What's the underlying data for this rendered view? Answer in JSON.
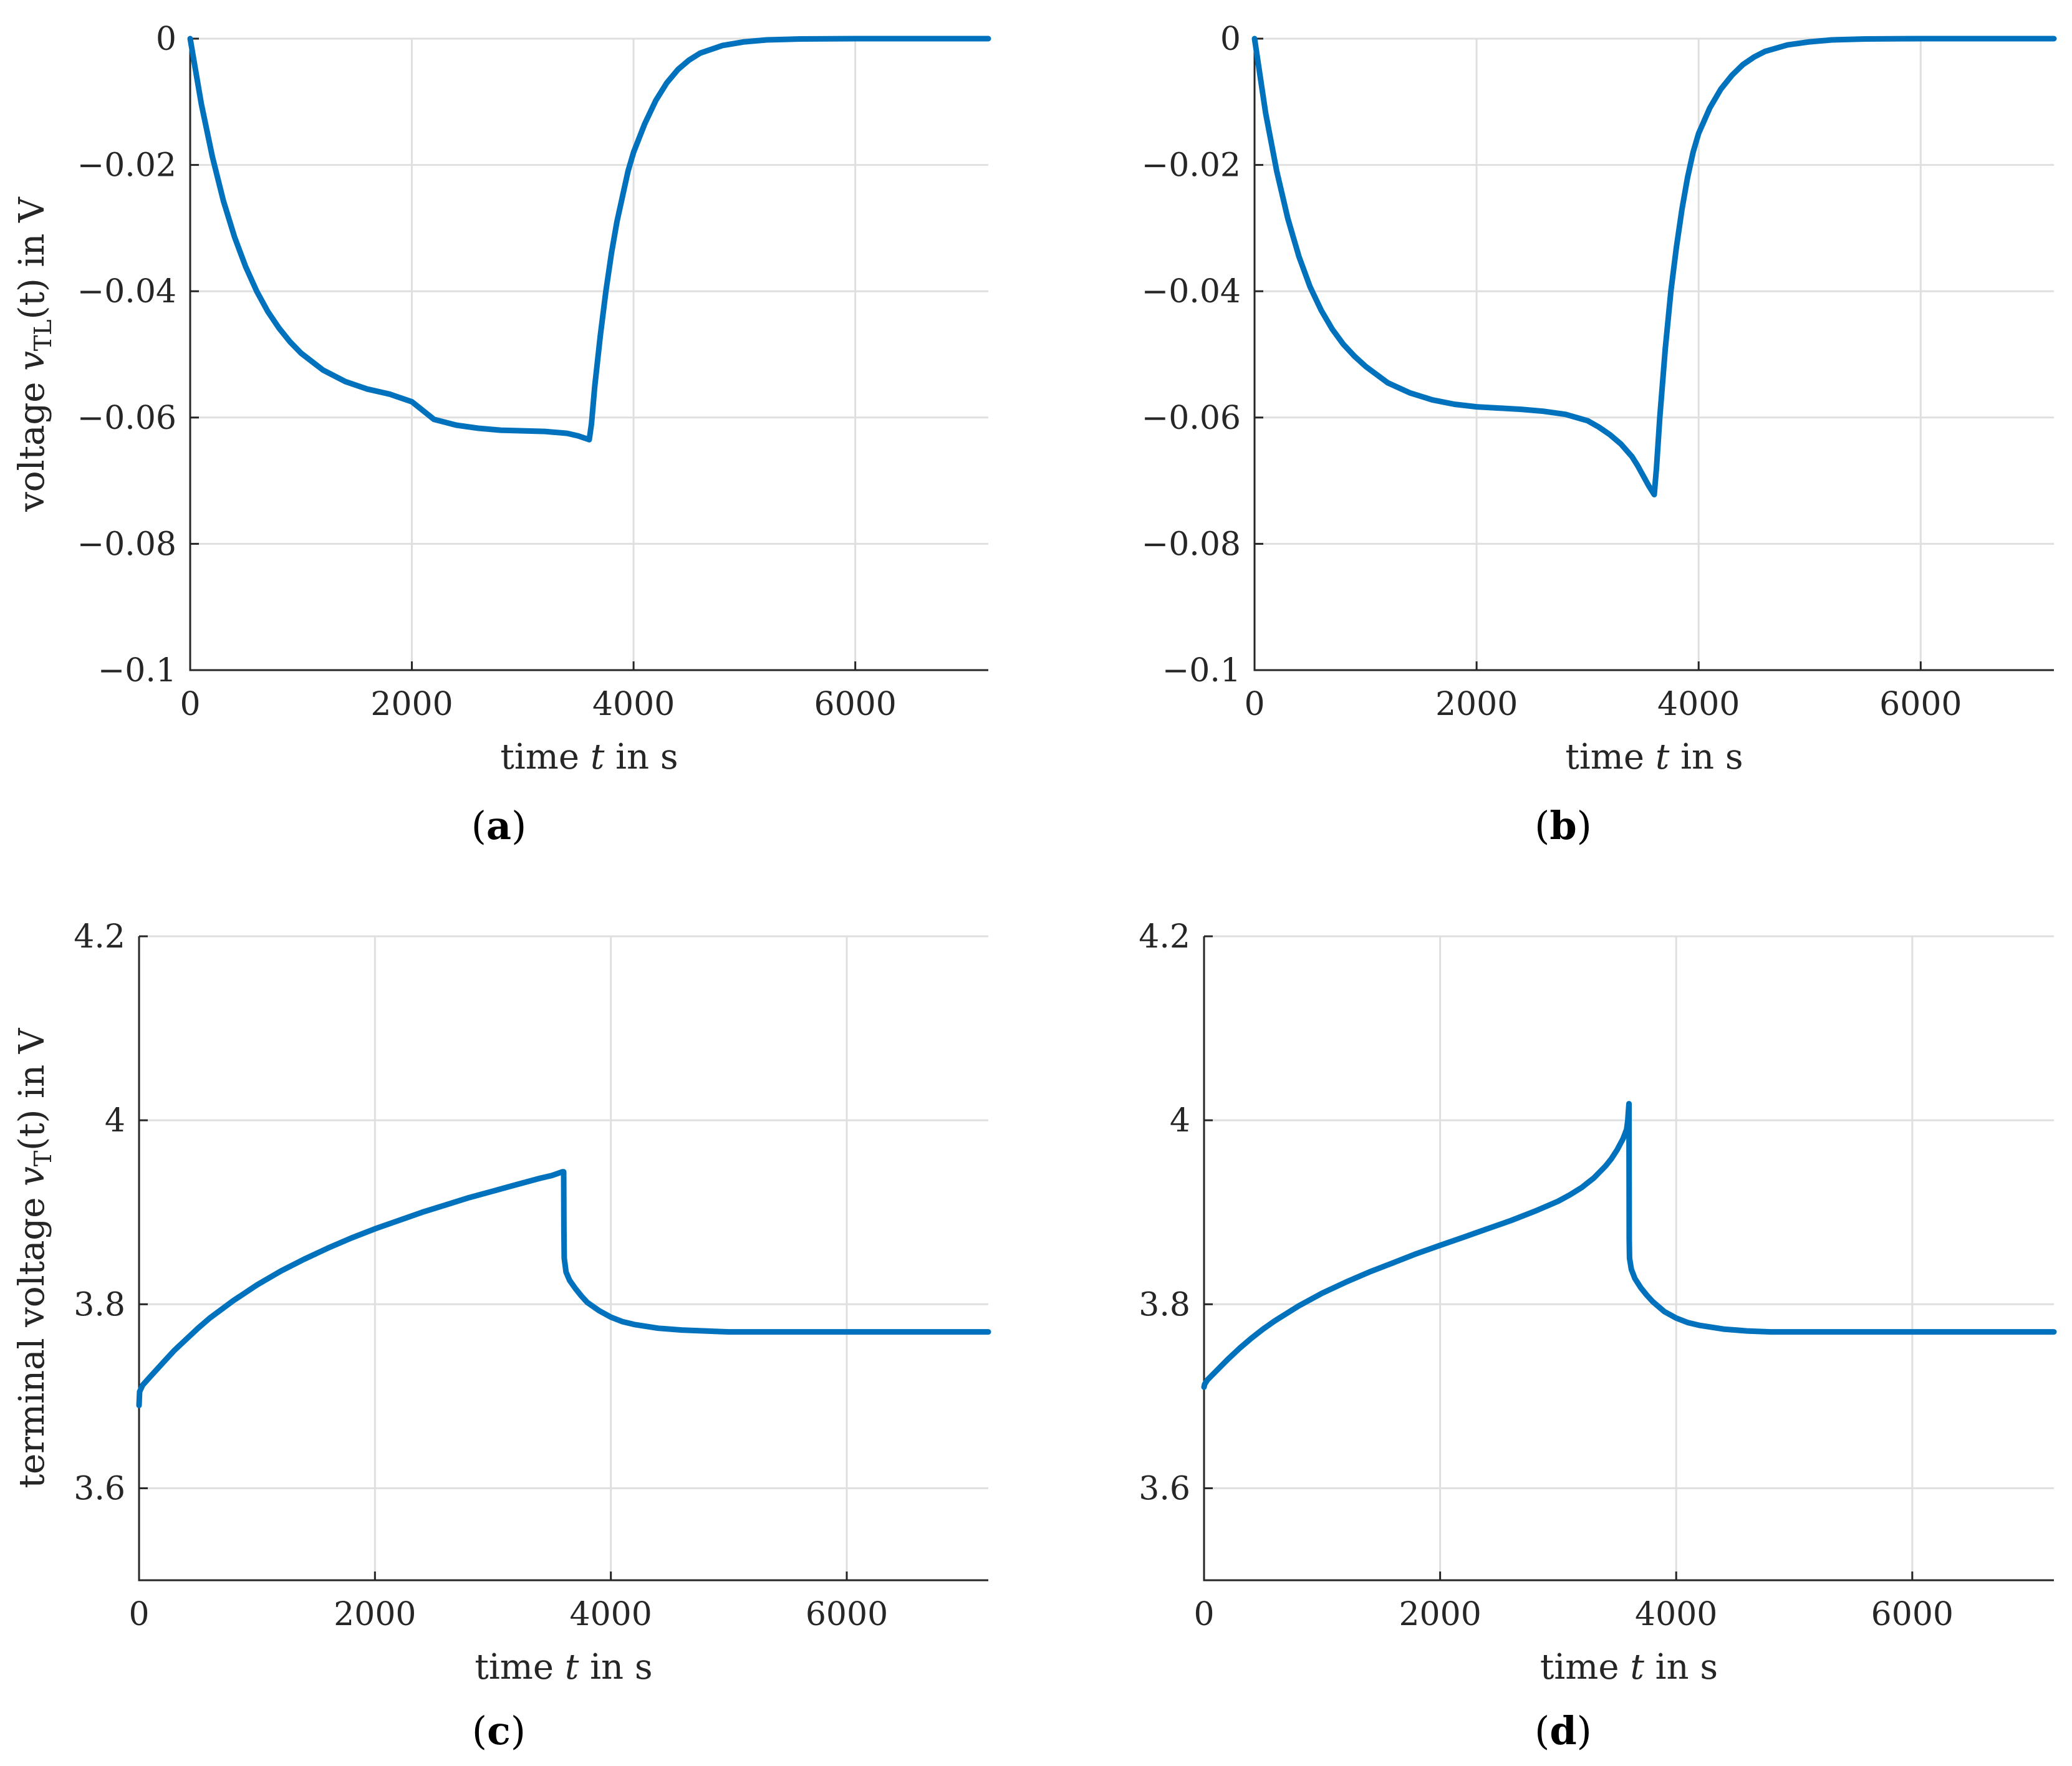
{
  "figure": {
    "line_color": "#0072bd",
    "grid_color": "#dfdfdf",
    "axis_color": "#262626"
  },
  "chart_data": [
    {
      "id": "a",
      "type": "line",
      "subcaption_open": "(",
      "subcaption_letter": "a",
      "subcaption_close": ")",
      "xlabel_pre": "time ",
      "xlabel_var": "t",
      "xlabel_post": " in s",
      "ylabel_pre": "voltage ",
      "ylabel_var": "v",
      "ylabel_sub": "TL",
      "ylabel_post": "(t) in V",
      "xlim": [
        0,
        7200
      ],
      "ylim": [
        -0.1,
        0
      ],
      "xticks": [
        0,
        2000,
        4000,
        6000
      ],
      "xtick_labels": [
        "0",
        "2000",
        "4000",
        "6000"
      ],
      "yticks": [
        -0.1,
        -0.08,
        -0.06,
        -0.04,
        -0.02,
        0
      ],
      "ytick_labels": [
        "−0.1",
        "−0.08",
        "−0.06",
        "−0.04",
        "−0.02",
        "0"
      ],
      "grid": true,
      "series": [
        {
          "name": "v_TL",
          "x": [
            0,
            100,
            200,
            300,
            400,
            500,
            600,
            700,
            800,
            900,
            1000,
            1200,
            1400,
            1600,
            1800,
            2000,
            2200,
            2400,
            2600,
            2800,
            3000,
            3200,
            3400,
            3500,
            3600,
            3620,
            3650,
            3700,
            3750,
            3800,
            3850,
            3900,
            3950,
            4000,
            4100,
            4200,
            4300,
            4400,
            4500,
            4600,
            4800,
            5000,
            5200,
            5500,
            6000,
            6500,
            7200
          ],
          "y": [
            0,
            -0.0103,
            -0.0187,
            -0.0257,
            -0.0314,
            -0.0361,
            -0.04,
            -0.0432,
            -0.0458,
            -0.048,
            -0.0498,
            -0.0525,
            -0.0543,
            -0.0555,
            -0.0563,
            -0.0575,
            -0.0603,
            -0.0612,
            -0.0617,
            -0.062,
            -0.0621,
            -0.0622,
            -0.0625,
            -0.0629,
            -0.0635,
            -0.061,
            -0.055,
            -0.047,
            -0.04,
            -0.034,
            -0.029,
            -0.025,
            -0.021,
            -0.018,
            -0.0135,
            -0.0098,
            -0.007,
            -0.0049,
            -0.0034,
            -0.0023,
            -0.0011,
            -0.0005,
            -0.0002,
            -5e-05,
            0,
            0,
            0
          ]
        }
      ]
    },
    {
      "id": "b",
      "type": "line",
      "subcaption_open": "(",
      "subcaption_letter": "b",
      "subcaption_close": ")",
      "xlabel_pre": "time ",
      "xlabel_var": "t",
      "xlabel_post": " in s",
      "ylabel_pre": "voltage ",
      "ylabel_var": "v",
      "ylabel_sub": "TL",
      "ylabel_post": "(t) in V",
      "xlim": [
        0,
        7200
      ],
      "ylim": [
        -0.1,
        0
      ],
      "xticks": [
        0,
        2000,
        4000,
        6000
      ],
      "xtick_labels": [
        "0",
        "2000",
        "4000",
        "6000"
      ],
      "yticks": [
        -0.1,
        -0.08,
        -0.06,
        -0.04,
        -0.02,
        0
      ],
      "ytick_labels": [
        "−0.1",
        "−0.08",
        "−0.06",
        "−0.04",
        "−0.02",
        "0"
      ],
      "grid": true,
      "series": [
        {
          "name": "v_TL",
          "x": [
            0,
            100,
            200,
            300,
            400,
            500,
            600,
            700,
            800,
            900,
            1000,
            1200,
            1400,
            1600,
            1800,
            2000,
            2200,
            2400,
            2600,
            2800,
            3000,
            3100,
            3200,
            3300,
            3400,
            3450,
            3500,
            3550,
            3600,
            3620,
            3650,
            3700,
            3750,
            3800,
            3850,
            3900,
            3950,
            4000,
            4100,
            4200,
            4300,
            4400,
            4500,
            4600,
            4800,
            5000,
            5200,
            5500,
            6000,
            6500,
            7200
          ],
          "y": [
            0,
            -0.0118,
            -0.021,
            -0.0285,
            -0.0345,
            -0.0393,
            -0.043,
            -0.046,
            -0.0484,
            -0.0503,
            -0.0519,
            -0.0545,
            -0.0561,
            -0.0572,
            -0.0579,
            -0.0583,
            -0.0585,
            -0.0587,
            -0.059,
            -0.0595,
            -0.0605,
            -0.0615,
            -0.0627,
            -0.0642,
            -0.0662,
            -0.0676,
            -0.0692,
            -0.0708,
            -0.0722,
            -0.068,
            -0.06,
            -0.049,
            -0.04,
            -0.033,
            -0.027,
            -0.022,
            -0.018,
            -0.015,
            -0.011,
            -0.008,
            -0.0058,
            -0.0041,
            -0.0029,
            -0.002,
            -0.001,
            -0.0005,
            -0.0002,
            -5e-05,
            0,
            0,
            0
          ]
        }
      ]
    },
    {
      "id": "c",
      "type": "line",
      "subcaption_open": "(",
      "subcaption_letter": "c",
      "subcaption_close": ")",
      "xlabel_pre": "time ",
      "xlabel_var": "t",
      "xlabel_post": " in s",
      "ylabel_pre": "terminal voltage ",
      "ylabel_var": "v",
      "ylabel_sub": "T",
      "ylabel_post": "(t) in V",
      "xlim": [
        0,
        7200
      ],
      "ylim": [
        3.5,
        4.2
      ],
      "xticks": [
        0,
        2000,
        4000,
        6000
      ],
      "xtick_labels": [
        "0",
        "2000",
        "4000",
        "6000"
      ],
      "yticks": [
        3.6,
        3.8,
        4,
        4.2
      ],
      "ytick_labels": [
        "3.6",
        "3.8",
        "4",
        "4.2"
      ],
      "grid": true,
      "series": [
        {
          "name": "v_T",
          "x": [
            0,
            5,
            30,
            100,
            200,
            300,
            400,
            500,
            600,
            800,
            1000,
            1200,
            1400,
            1600,
            1800,
            2000,
            2200,
            2400,
            2600,
            2800,
            3000,
            3200,
            3400,
            3500,
            3590,
            3600,
            3602,
            3605,
            3620,
            3650,
            3700,
            3750,
            3800,
            3900,
            4000,
            4100,
            4200,
            4400,
            4600,
            4800,
            5000,
            5500,
            6000,
            7200
          ],
          "y": [
            3.69,
            3.705,
            3.712,
            3.722,
            3.736,
            3.75,
            3.762,
            3.774,
            3.785,
            3.804,
            3.821,
            3.836,
            3.849,
            3.861,
            3.872,
            3.882,
            3.891,
            3.9,
            3.908,
            3.916,
            3.923,
            3.93,
            3.937,
            3.94,
            3.944,
            3.944,
            3.88,
            3.85,
            3.835,
            3.826,
            3.817,
            3.809,
            3.802,
            3.793,
            3.786,
            3.781,
            3.778,
            3.774,
            3.772,
            3.771,
            3.77,
            3.77,
            3.77,
            3.77
          ]
        }
      ]
    },
    {
      "id": "d",
      "type": "line",
      "subcaption_open": "(",
      "subcaption_letter": "d",
      "subcaption_close": ")",
      "xlabel_pre": "time ",
      "xlabel_var": "t",
      "xlabel_post": " in s",
      "ylabel_pre": "terminal voltage ",
      "ylabel_var": "v",
      "ylabel_sub": "T",
      "ylabel_post": "(t) in V",
      "xlim": [
        0,
        7200
      ],
      "ylim": [
        3.5,
        4.2
      ],
      "xticks": [
        0,
        2000,
        4000,
        6000
      ],
      "xtick_labels": [
        "0",
        "2000",
        "4000",
        "6000"
      ],
      "yticks": [
        3.6,
        3.8,
        4,
        4.2
      ],
      "ytick_labels": [
        "3.6",
        "3.8",
        "4",
        "4.2"
      ],
      "grid": true,
      "series": [
        {
          "name": "v_T",
          "x": [
            0,
            5,
            30,
            100,
            200,
            300,
            400,
            500,
            600,
            800,
            1000,
            1200,
            1400,
            1600,
            1800,
            2000,
            2200,
            2400,
            2600,
            2800,
            3000,
            3100,
            3200,
            3300,
            3400,
            3450,
            3500,
            3550,
            3580,
            3590,
            3595,
            3600,
            3602,
            3605,
            3620,
            3650,
            3700,
            3750,
            3800,
            3900,
            4000,
            4100,
            4200,
            4400,
            4600,
            4800,
            5000,
            5500,
            6000,
            7200
          ],
          "y": [
            3.71,
            3.713,
            3.718,
            3.727,
            3.74,
            3.752,
            3.763,
            3.773,
            3.782,
            3.798,
            3.812,
            3.824,
            3.835,
            3.845,
            3.855,
            3.864,
            3.873,
            3.882,
            3.891,
            3.901,
            3.912,
            3.919,
            3.927,
            3.937,
            3.95,
            3.958,
            3.968,
            3.98,
            3.99,
            4.0,
            4.01,
            4.018,
            3.87,
            3.85,
            3.838,
            3.828,
            3.818,
            3.81,
            3.803,
            3.792,
            3.785,
            3.78,
            3.777,
            3.773,
            3.771,
            3.77,
            3.77,
            3.77,
            3.77,
            3.77
          ]
        }
      ]
    }
  ]
}
